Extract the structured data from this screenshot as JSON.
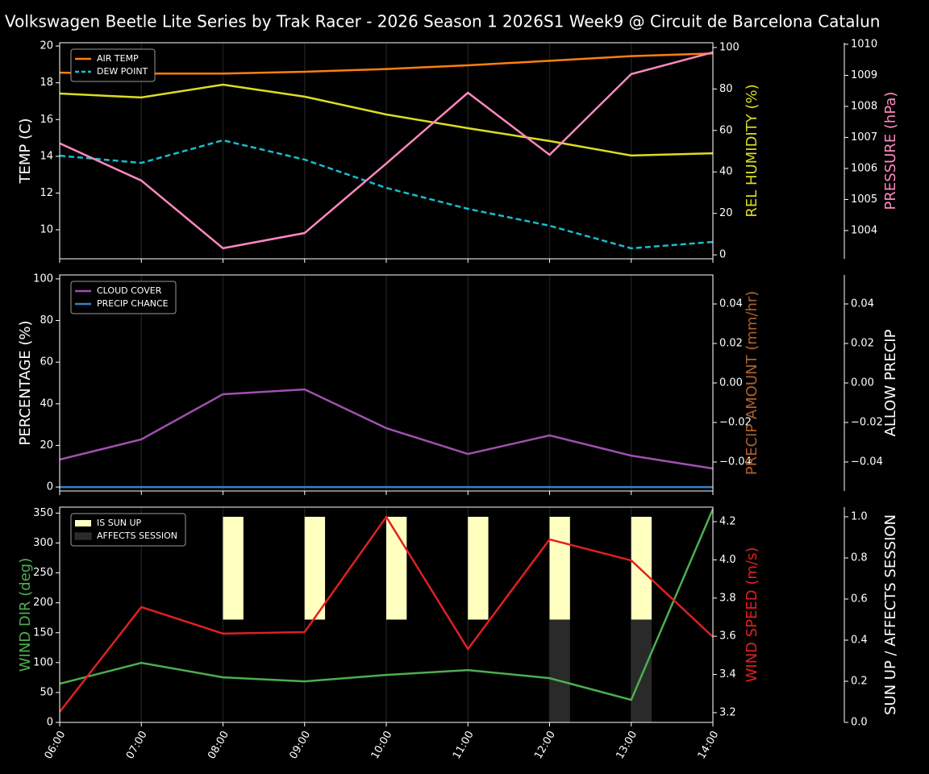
{
  "chart_data": [
    {
      "type": "line",
      "title": "Volkswagen Beetle Lite Series by Trak Racer - 2026 Season 1 2026S1 Week9 @ Circuit de Barcelona Catalun",
      "ylabel": "TEMP (C)",
      "ylabel_color": "#ffffff",
      "ylim": [
        8.42,
        20.18
      ],
      "yticks": [
        10,
        12,
        14,
        16,
        18,
        20
      ],
      "y2label": "REL HUMIDITY (%)",
      "y2label_color": "#dddd22",
      "y2lim": [
        -1.9,
        102.3
      ],
      "y2ticks": [
        0,
        20,
        40,
        60,
        80,
        100
      ],
      "y3label": "PRESSURE (hPa)",
      "y3label_color": "#ff88c0",
      "y3lim": [
        1003.09,
        1010.05
      ],
      "y3ticks": [
        1004,
        1005,
        1006,
        1007,
        1008,
        1009,
        1010
      ],
      "legend": "upper left",
      "series": [
        {
          "name": "AIR TEMP",
          "color": "#ff7f0e",
          "axis": "y",
          "values": [
            18.55,
            18.5,
            18.5,
            18.6,
            18.75,
            18.95,
            19.2,
            19.45,
            19.6
          ]
        },
        {
          "name": "DEW POINT",
          "color": "#17becf",
          "axis": "y",
          "dashed": true,
          "values": [
            14.03,
            13.64,
            14.87,
            13.82,
            12.28,
            11.14,
            10.22,
            8.99,
            9.34
          ]
        },
        {
          "color": "#dddd22",
          "axis": "y2",
          "values": [
            77.8,
            75.9,
            82.1,
            76.3,
            67.7,
            61.1,
            54.9,
            47.9,
            49.0
          ]
        },
        {
          "color": "#ff88c0",
          "axis": "y3",
          "values": [
            1006.81,
            1005.61,
            1003.43,
            1003.92,
            1006.16,
            1008.44,
            1006.44,
            1009.04,
            1009.74
          ]
        }
      ]
    },
    {
      "type": "line",
      "ylabel": "PERCENTAGE (%)",
      "ylabel_color": "#ffffff",
      "ylim": [
        -1.9,
        101.9
      ],
      "yticks": [
        0,
        20,
        40,
        60,
        80,
        100
      ],
      "y2label": "PRECIP AMOUNT (mm/hr)",
      "y2label_color": "#b0622a",
      "y2lim": [
        -0.0547,
        0.0547
      ],
      "y2ticks": [
        {
          "value": -0.04,
          "label": "−0.04"
        },
        {
          "value": -0.02,
          "label": "−0.02"
        },
        {
          "value": 0,
          "label": "0.00"
        },
        0.02,
        0.04
      ],
      "y3label": "ALLOW PRECIP",
      "y3label_color": "#ffffff",
      "y3lim": [
        -0.0547,
        0.0547
      ],
      "y3ticks": [
        {
          "value": -0.04,
          "label": "−0.04"
        },
        {
          "value": -0.02,
          "label": "−0.02"
        },
        {
          "value": 0,
          "label": "0.00"
        },
        0.02,
        0.04
      ],
      "legend": "upper left",
      "series": [
        {
          "name": "CLOUD COVER",
          "color": "#a050b0",
          "axis": "y",
          "values": [
            13.2,
            22.9,
            44.6,
            46.9,
            28.3,
            15.9,
            24.8,
            15.1,
            8.9
          ]
        },
        {
          "name": "PRECIP CHANCE",
          "color": "#3a80c8",
          "axis": "y",
          "values": [
            0,
            0,
            0,
            0,
            0,
            0,
            0,
            0,
            0
          ]
        }
      ]
    },
    {
      "type": "line",
      "categories": [
        "06:00",
        "07:00",
        "08:00",
        "09:00",
        "10:00",
        "11:00",
        "12:00",
        "13:00",
        "14:00"
      ],
      "ylabel": "WIND DIR (deg)",
      "ylabel_color": "#4caf50",
      "ylim": [
        0,
        360
      ],
      "yticks": [
        0,
        50,
        100,
        150,
        200,
        250,
        300,
        350
      ],
      "y2label": "WIND SPEED (m/s)",
      "y2label_color": "#e02020",
      "y2lim": [
        3.149,
        4.276
      ],
      "y2ticks": [
        3.2,
        3.4,
        3.6,
        3.8,
        {
          "value": 4,
          "label": "4.0"
        },
        4.2
      ],
      "y3label": "SUN UP / AFFECTS SESSION",
      "y3label_color": "#ffffff",
      "y3lim": [
        0,
        1.047
      ],
      "y3ticks": [
        {
          "value": 0,
          "label": "0.0"
        },
        0.2,
        0.4,
        0.6,
        0.8,
        {
          "value": 1,
          "label": "1.0"
        }
      ],
      "legend": "upper left",
      "series": [
        {
          "name": "IS SUN UP",
          "type": "bar",
          "color": "#ffffc0",
          "axis": "y3",
          "bottom": 0.5,
          "values": [
            0,
            0,
            0.5,
            0.5,
            0.5,
            0.5,
            0.5,
            0.5,
            0
          ]
        },
        {
          "name": "AFFECTS SESSION",
          "type": "bar",
          "color": "#2a2a2a",
          "axis": "y3",
          "bottom": 0,
          "values": [
            0,
            0,
            0,
            0,
            0,
            0,
            0.5,
            0.5,
            0
          ]
        },
        {
          "color": "#4caf50",
          "axis": "y",
          "values": [
            64.6,
            99.6,
            75.4,
            68.6,
            79.4,
            87.5,
            74.0,
            37.7,
            356.7
          ]
        },
        {
          "color": "#e02020",
          "axis": "y2",
          "values": [
            3.204,
            3.753,
            3.614,
            3.622,
            4.225,
            3.533,
            4.107,
            3.997,
            3.597
          ]
        }
      ]
    }
  ]
}
